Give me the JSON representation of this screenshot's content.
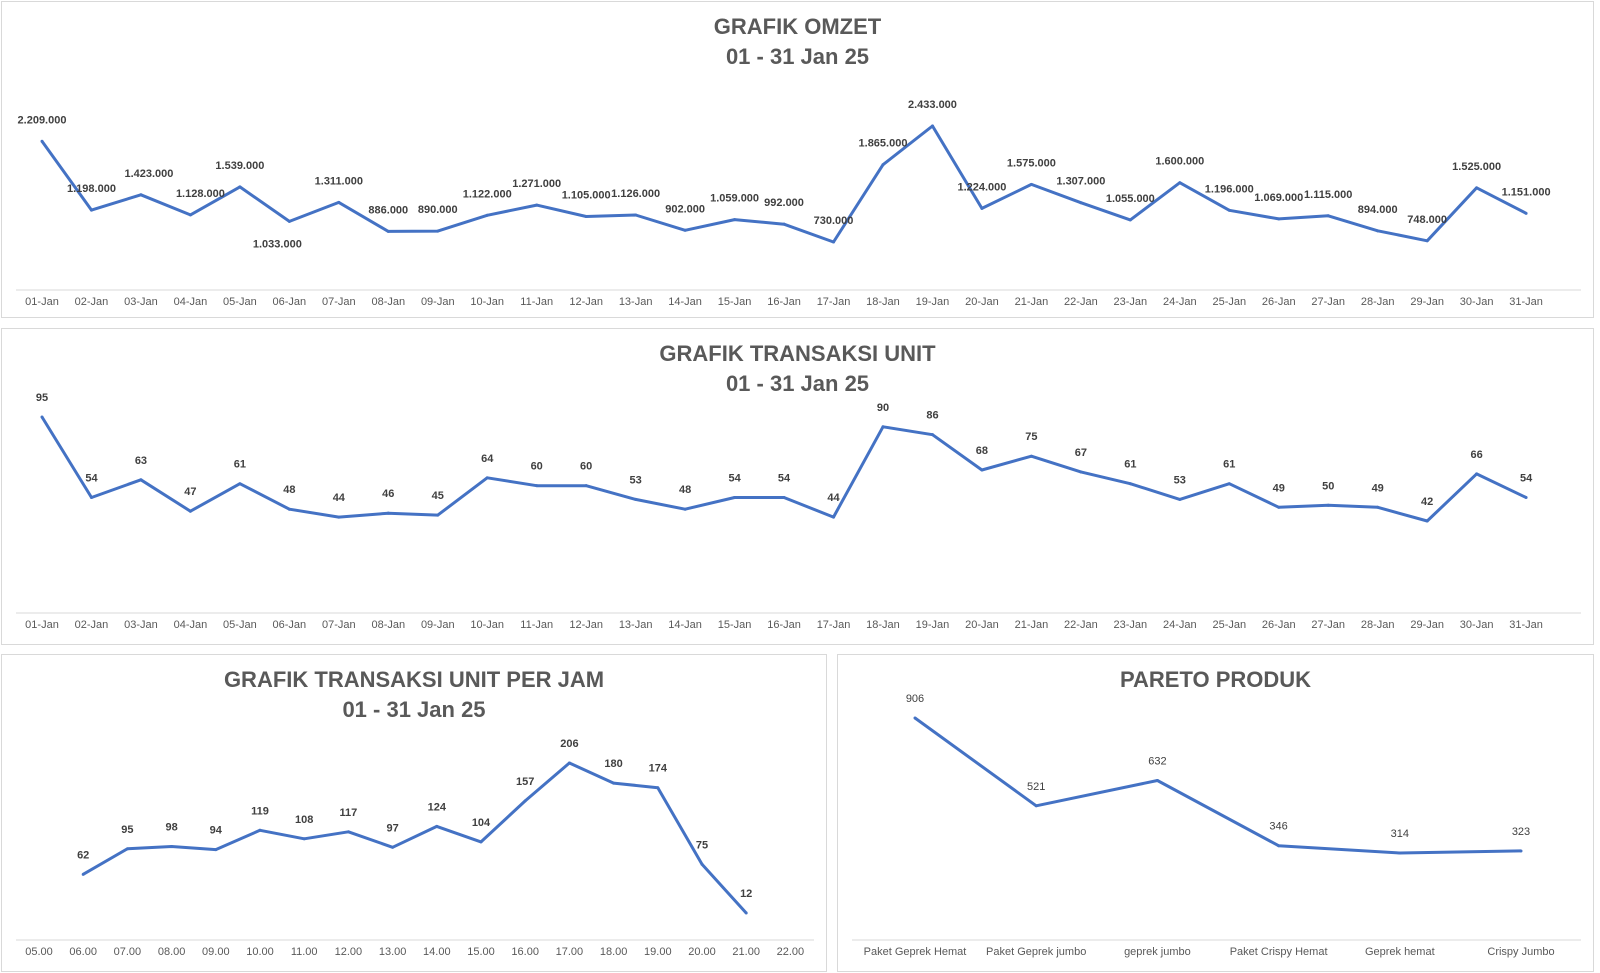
{
  "colors": {
    "line": "#4472c4",
    "axis": "#d9d9d9",
    "title": "#595959",
    "label": "#404040"
  },
  "chart_data": [
    {
      "id": "omzet",
      "type": "line",
      "title": "GRAFIK OMZET",
      "subtitle": "01 - 31 Jan 25",
      "categories": [
        "01-Jan",
        "02-Jan",
        "03-Jan",
        "04-Jan",
        "05-Jan",
        "06-Jan",
        "07-Jan",
        "08-Jan",
        "09-Jan",
        "10-Jan",
        "11-Jan",
        "12-Jan",
        "13-Jan",
        "14-Jan",
        "15-Jan",
        "16-Jan",
        "17-Jan",
        "18-Jan",
        "19-Jan",
        "20-Jan",
        "21-Jan",
        "22-Jan",
        "23-Jan",
        "24-Jan",
        "25-Jan",
        "26-Jan",
        "27-Jan",
        "28-Jan",
        "29-Jan",
        "30-Jan",
        "31-Jan"
      ],
      "values": [
        2209000,
        1198000,
        1423000,
        1128000,
        1539000,
        1033000,
        1311000,
        886000,
        890000,
        1122000,
        1271000,
        1105000,
        1126000,
        902000,
        1059000,
        992000,
        730000,
        1865000,
        2433000,
        1224000,
        1575000,
        1307000,
        1055000,
        1600000,
        1196000,
        1069000,
        1115000,
        894000,
        748000,
        1525000,
        1151000
      ],
      "data_labels": [
        "2.209.000",
        "1.198.000",
        "1.423.000",
        "1.128.000",
        "1.539.000",
        "1.033.000",
        "1.311.000",
        "886.000",
        "890.000",
        "1.122.000",
        "1.271.000",
        "1.105.000",
        "1.126.000",
        "902.000",
        "1.059.000",
        "992.000",
        "730.000",
        "1.865.000",
        "2.433.000",
        "1.224.000",
        "1.575.000",
        "1.307.000",
        "1.055.000",
        "1.600.000",
        "1.196.000",
        "1.069.000",
        "1.115.000",
        "894.000",
        "748.000",
        "1.525.000",
        "1.151.000"
      ],
      "grid": false,
      "legend": "none"
    },
    {
      "id": "unit",
      "type": "line",
      "title": "GRAFIK TRANSAKSI UNIT",
      "subtitle": "01 - 31 Jan 25",
      "categories": [
        "01-Jan",
        "02-Jan",
        "03-Jan",
        "04-Jan",
        "05-Jan",
        "06-Jan",
        "07-Jan",
        "08-Jan",
        "09-Jan",
        "10-Jan",
        "11-Jan",
        "12-Jan",
        "13-Jan",
        "14-Jan",
        "15-Jan",
        "16-Jan",
        "17-Jan",
        "18-Jan",
        "19-Jan",
        "20-Jan",
        "21-Jan",
        "22-Jan",
        "23-Jan",
        "24-Jan",
        "25-Jan",
        "26-Jan",
        "27-Jan",
        "28-Jan",
        "29-Jan",
        "30-Jan",
        "31-Jan"
      ],
      "values": [
        95,
        54,
        63,
        47,
        61,
        48,
        44,
        46,
        45,
        64,
        60,
        60,
        53,
        48,
        54,
        54,
        44,
        90,
        86,
        68,
        75,
        67,
        61,
        53,
        61,
        49,
        50,
        49,
        42,
        66,
        54
      ],
      "data_labels": [
        "95",
        "54",
        "63",
        "47",
        "61",
        "48",
        "44",
        "46",
        "45",
        "64",
        "60",
        "60",
        "53",
        "48",
        "54",
        "54",
        "44",
        "90",
        "86",
        "68",
        "75",
        "67",
        "61",
        "53",
        "61",
        "49",
        "50",
        "49",
        "42",
        "66",
        "54"
      ],
      "grid": false,
      "legend": "none"
    },
    {
      "id": "jam",
      "type": "line",
      "title": "GRAFIK TRANSAKSI UNIT PER JAM",
      "subtitle": "01 - 31 Jan 25",
      "categories": [
        "05.00",
        "06.00",
        "07.00",
        "08.00",
        "09.00",
        "10.00",
        "11.00",
        "12.00",
        "13.00",
        "14.00",
        "15.00",
        "16.00",
        "17.00",
        "18.00",
        "19.00",
        "20.00",
        "21.00",
        "22.00"
      ],
      "values": [
        null,
        62,
        95,
        98,
        94,
        119,
        108,
        117,
        97,
        124,
        104,
        157,
        206,
        180,
        174,
        75,
        12,
        null
      ],
      "data_labels": [
        "",
        "62",
        "95",
        "98",
        "94",
        "119",
        "108",
        "117",
        "97",
        "124",
        "104",
        "157",
        "206",
        "180",
        "174",
        "75",
        "12",
        ""
      ],
      "grid": false,
      "legend": "none"
    },
    {
      "id": "pareto",
      "type": "line",
      "title": "PARETO PRODUK",
      "subtitle": "",
      "categories": [
        "Paket Geprek Hemat",
        "Paket Geprek jumbo",
        "geprek jumbo",
        "Paket Crispy Hemat",
        "Geprek hemat",
        "Crispy Jumbo"
      ],
      "values": [
        906,
        521,
        632,
        346,
        314,
        323
      ],
      "data_labels": [
        "906",
        "521",
        "632",
        "346",
        "314",
        "323"
      ],
      "grid": false,
      "legend": "none"
    }
  ]
}
